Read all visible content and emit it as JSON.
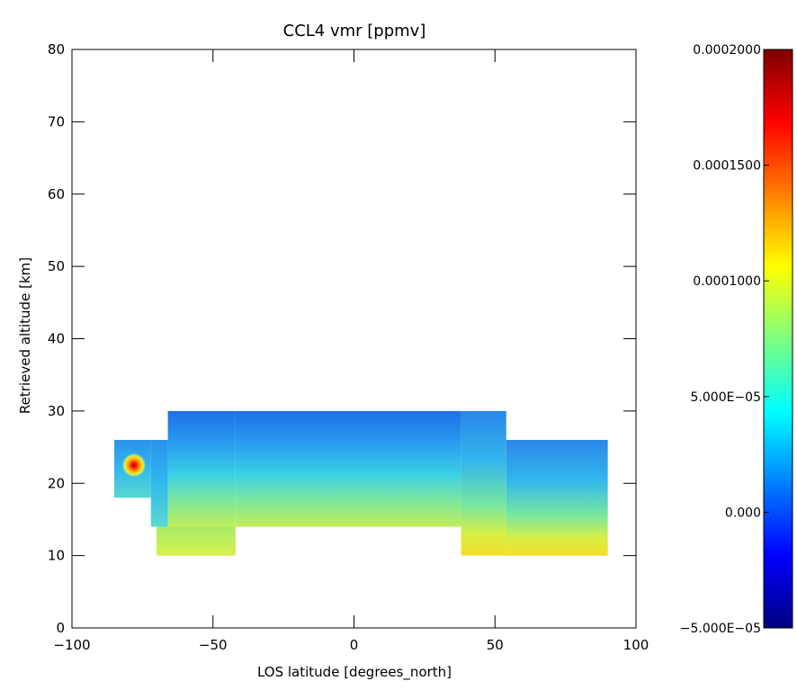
{
  "chart_data": {
    "type": "heatmap",
    "title": "CCL4 vmr [ppmv]",
    "xlabel": "LOS latitude [degrees_north]",
    "ylabel": "Retrieved altitude [km]",
    "xlim": [
      -100,
      100
    ],
    "ylim": [
      0,
      80
    ],
    "xticks": [
      {
        "value": -100,
        "label": "−100"
      },
      {
        "value": -50,
        "label": "−50"
      },
      {
        "value": 0,
        "label": "0"
      },
      {
        "value": 50,
        "label": "50"
      },
      {
        "value": 100,
        "label": "100"
      }
    ],
    "yticks": [
      {
        "value": 0,
        "label": "0"
      },
      {
        "value": 10,
        "label": "10"
      },
      {
        "value": 20,
        "label": "20"
      },
      {
        "value": 30,
        "label": "30"
      },
      {
        "value": 40,
        "label": "40"
      },
      {
        "value": 50,
        "label": "50"
      },
      {
        "value": 60,
        "label": "60"
      },
      {
        "value": 70,
        "label": "70"
      },
      {
        "value": 80,
        "label": "80"
      }
    ],
    "colorbar": {
      "colormap": "jet",
      "range": [
        -5e-05,
        0.0002
      ],
      "ticks": [
        {
          "value": 0.0002,
          "label": "0.0002000"
        },
        {
          "value": 0.00015,
          "label": "0.0001500"
        },
        {
          "value": 0.0001,
          "label": "0.0001000"
        },
        {
          "value": 5e-05,
          "label": "5.000E−05"
        },
        {
          "value": 0.0,
          "label": "0.000"
        },
        {
          "value": -5e-05,
          "label": "−5.000E−05"
        }
      ]
    },
    "regions": [
      {
        "x": [
          -85,
          -72
        ],
        "y": [
          18,
          26
        ],
        "value": 3e-05
      },
      {
        "x": [
          -72,
          -66
        ],
        "y": [
          14,
          26
        ],
        "value": 4e-05
      },
      {
        "x": [
          -66,
          -42
        ],
        "y": [
          14,
          30
        ],
        "value": 3e-05
      },
      {
        "x": [
          -70,
          -42
        ],
        "y": [
          10,
          14
        ],
        "value": 9e-05
      },
      {
        "x": [
          -42,
          38
        ],
        "y": [
          14,
          30
        ],
        "value": 4e-05
      },
      {
        "x": [
          38,
          54
        ],
        "y": [
          10,
          30
        ],
        "value": 6e-05
      },
      {
        "x": [
          54,
          90
        ],
        "y": [
          10,
          26
        ],
        "value": 5e-05
      }
    ],
    "hotspot": {
      "x": -78,
      "y": 22.5,
      "value": 0.0002
    }
  }
}
